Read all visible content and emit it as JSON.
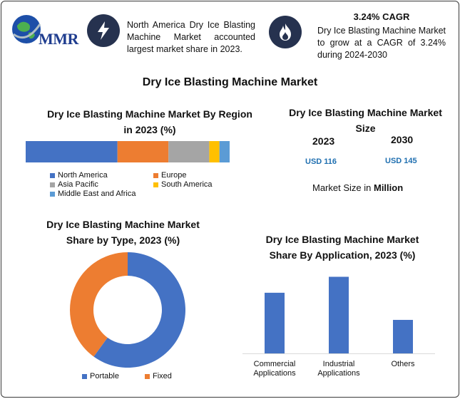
{
  "header": {
    "logo_text": "MMR",
    "highlight1": "North America Dry Ice Blasting Machine Market accounted largest market share in 2023.",
    "cagr_title": "3.24% CAGR",
    "highlight2": "Dry Ice Blasting Machine Market to grow at a CAGR of 3.24% during 2024-2030",
    "icons": [
      "globe-icon",
      "lightning-icon",
      "flame-icon"
    ]
  },
  "main_title": "Dry Ice Blasting Machine Market",
  "region": {
    "title": "Dry Ice Blasting Machine Market By Region in 2023 (%)"
  },
  "size": {
    "title": "Dry Ice Blasting Machine Market Size",
    "year1": "2023",
    "year2": "2030",
    "value1": "USD 116",
    "value2": "USD 145",
    "unit_prefix": "Market Size in ",
    "unit_bold": "Million"
  },
  "type": {
    "title": "Dry Ice Blasting Machine Market Share by Type, 2023 (%)"
  },
  "application": {
    "title": "Dry Ice Blasting Machine Market Share By Application, 2023 (%)"
  },
  "chart_data": [
    {
      "type": "bar",
      "orientation": "horizontal-stacked",
      "title": "Dry Ice Blasting Machine Market By Region in 2023 (%)",
      "series": [
        {
          "name": "North America",
          "value": 45,
          "color": "#4472c4"
        },
        {
          "name": "Europe",
          "value": 25,
          "color": "#ed7d31"
        },
        {
          "name": "Asia Pacific",
          "value": 20,
          "color": "#a5a5a5"
        },
        {
          "name": "South America",
          "value": 5,
          "color": "#ffc000"
        },
        {
          "name": "Middle East and Africa",
          "value": 5,
          "color": "#5b9bd5"
        }
      ],
      "legend": "bottom"
    },
    {
      "type": "pie",
      "donut": true,
      "title": "Dry Ice Blasting Machine Market Share by Type, 2023 (%)",
      "slices": [
        {
          "name": "Portable",
          "value": 60,
          "color": "#4472c4"
        },
        {
          "name": "Fixed",
          "value": 40,
          "color": "#ed7d31"
        }
      ],
      "legend": "bottom"
    },
    {
      "type": "bar",
      "title": "Dry Ice Blasting Machine Market Share By Application, 2023 (%)",
      "categories": [
        "Commercial Applications",
        "Industrial Applications",
        "Others"
      ],
      "values": [
        38,
        48,
        21
      ],
      "color": "#4472c4",
      "ylim": [
        0,
        50
      ]
    }
  ]
}
